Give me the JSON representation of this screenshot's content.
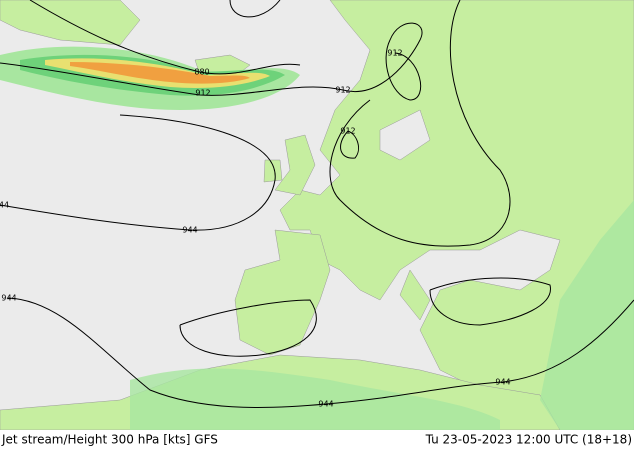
{
  "footer": {
    "left": "Jet stream/Height 300 hPa [kts] GFS",
    "right": "Tu 23-05-2023 12:00 UTC (18+18)"
  },
  "contour_labels": [
    "880",
    "912",
    "912",
    "912",
    "912",
    "44",
    "944",
    "944",
    "944",
    "944"
  ]
}
